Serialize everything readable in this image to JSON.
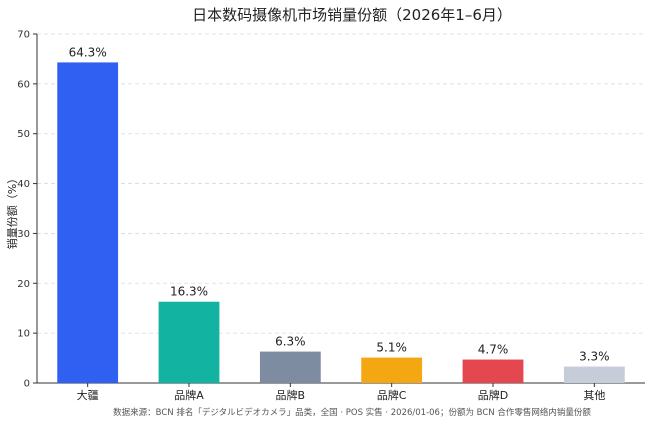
{
  "chart_data": {
    "type": "bar",
    "title": "日本数码摄像机市场销量份额（2026年1–6月）",
    "ylabel": "销量份额（%）",
    "xlabel": "",
    "ylim": [
      0,
      70
    ],
    "yticks": [
      0,
      10,
      20,
      30,
      40,
      50,
      60,
      70
    ],
    "grid": true,
    "categories": [
      "大疆",
      "品牌A",
      "品牌B",
      "品牌C",
      "品牌D",
      "其他"
    ],
    "values": [
      64.3,
      16.3,
      6.3,
      5.1,
      4.7,
      3.3
    ],
    "value_labels": [
      "64.3%",
      "16.3%",
      "6.3%",
      "5.1%",
      "4.7%",
      "3.3%"
    ],
    "colors": [
      "#3060f2",
      "#12b3a0",
      "#7d8ca0",
      "#f3a712",
      "#e4474f",
      "#c6cdd8"
    ],
    "source": "数据来源：BCN 排名「デジタルビデオカメラ」品类，全国 · POS 实售 · 2026/01-06；份额为 BCN 合作零售网络内销量份额"
  }
}
